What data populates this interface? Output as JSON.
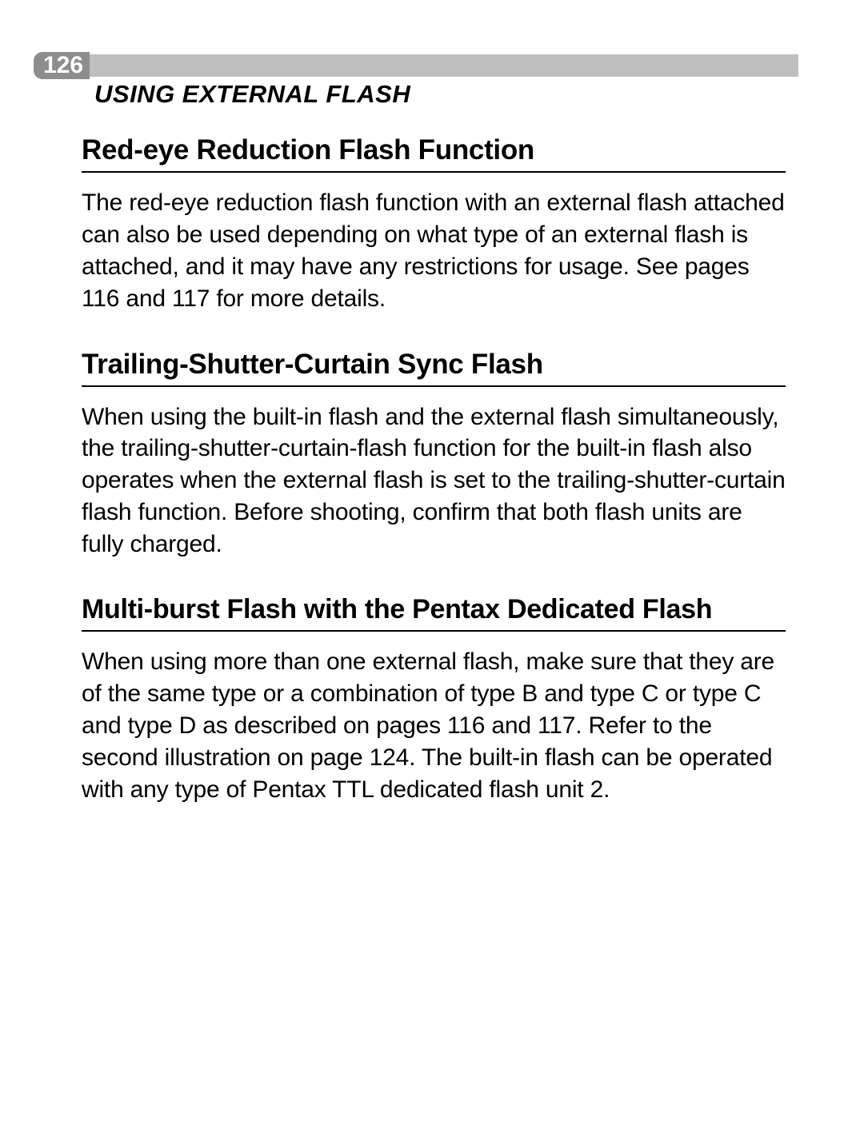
{
  "page_number": "126",
  "chapter_title": "USING EXTERNAL FLASH",
  "header_bar": {
    "badge_bg": "#8d8d8d",
    "badge_text_color": "#ffffff",
    "bar_bg": "#bfbfbf"
  },
  "typography": {
    "heading_fontsize": 35,
    "body_fontsize": 30,
    "chapter_fontsize": 31,
    "page_number_fontsize": 30
  },
  "sections": [
    {
      "heading": "Red-eye Reduction Flash Function",
      "body": "The red-eye reduction flash function with an external flash attached can also be used depending on what type of an external flash is attached, and it may have any restrictions for usage. See pages 116 and 117 for more details."
    },
    {
      "heading": "Trailing-Shutter-Curtain Sync Flash",
      "body": "When using the built-in flash and the external flash simultaneously, the trailing-shutter-curtain-flash function for the built-in flash also operates when the external flash is set to the trailing-shutter-curtain flash function. Before shooting, confirm that both flash units are fully charged."
    },
    {
      "heading": "Multi-burst Flash with the Pentax Dedicated Flash",
      "body": "When using more than one external flash, make sure that they are of the same type or a combination of type B and type C or type C and type D as described on pages 116 and 117. Refer to the second illustration on page 124. The built-in flash can be operated with any type of Pentax TTL dedicated flash unit 2."
    }
  ],
  "colors": {
    "background": "#ffffff",
    "text": "#000000",
    "rule": "#000000"
  }
}
